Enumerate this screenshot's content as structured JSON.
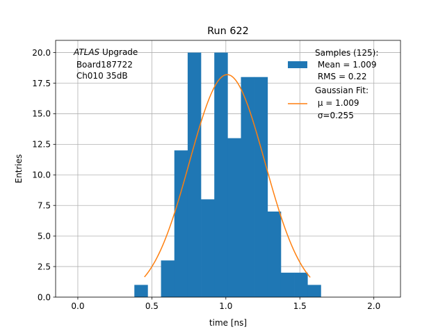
{
  "chart_data": {
    "type": "bar",
    "title": "Run 622",
    "xlabel": "time [ns]",
    "ylabel": "Entries",
    "xlim": [
      -0.15,
      2.18
    ],
    "ylim": [
      0,
      21
    ],
    "grid": true,
    "x_ticks": [
      0.0,
      0.5,
      1.0,
      1.5,
      2.0
    ],
    "x_tick_labels": [
      "0.0",
      "0.5",
      "1.0",
      "1.5",
      "2.0"
    ],
    "y_ticks": [
      0.0,
      2.5,
      5.0,
      7.5,
      10.0,
      12.5,
      15.0,
      17.5,
      20.0
    ],
    "y_tick_labels": [
      "0.0",
      "2.5",
      "5.0",
      "7.5",
      "10.0",
      "12.5",
      "15.0",
      "17.5",
      "20.0"
    ],
    "bar_color": "#1f77b4",
    "fit_color": "#ff7f0e",
    "histogram": {
      "bin_left_edges": [
        0.382,
        0.472,
        0.562,
        0.652,
        0.742,
        0.832,
        0.922,
        1.012,
        1.102,
        1.192,
        1.282,
        1.372,
        1.462,
        1.552
      ],
      "bin_width": 0.09,
      "counts": [
        1,
        0,
        3,
        12,
        20,
        8,
        20,
        13,
        18,
        18,
        7,
        2,
        2,
        1
      ]
    },
    "fit": {
      "mu": 1.009,
      "sigma": 0.255,
      "amplitude": 18.2,
      "x_range": [
        0.45,
        1.57
      ]
    },
    "annotation": {
      "line1_italic": "ATLAS",
      "line1_rest": " Upgrade",
      "line2": " Board187722",
      "line3": " Ch010 35dB"
    },
    "legend": {
      "position": "top-right",
      "samples_title": "Samples (125):",
      "samples_mean": " Mean = 1.009",
      "samples_rms": " RMS = 0.22",
      "fit_title": "Gaussian Fit:",
      "fit_mu": " μ = 1.009",
      "fit_sigma": " σ=0.255"
    }
  }
}
